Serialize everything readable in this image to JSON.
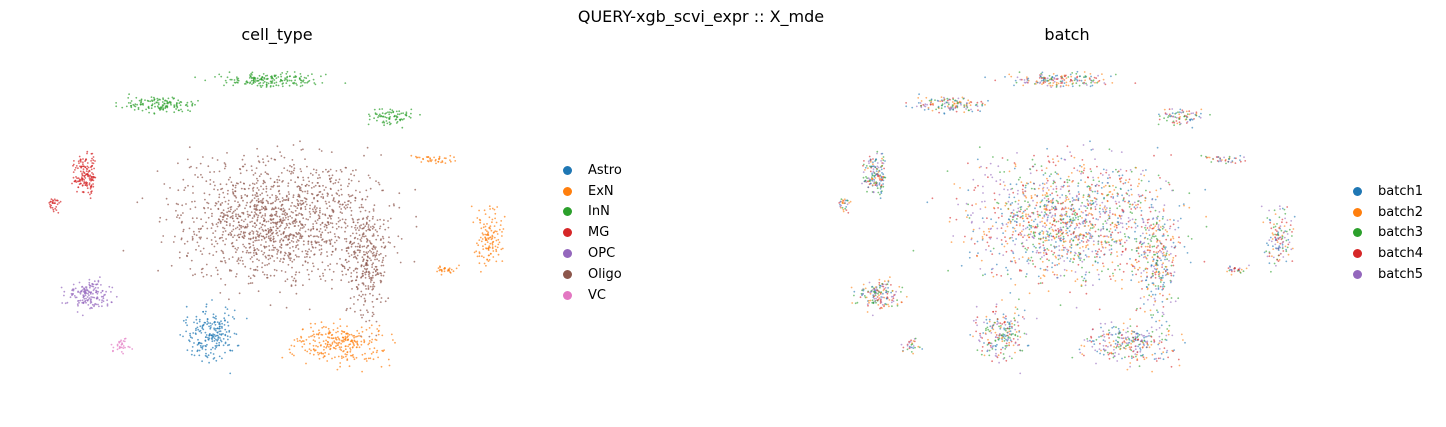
{
  "figure": {
    "suptitle": "QUERY-xgb_scvi_expr :: X_mde"
  },
  "chart_data": [
    {
      "type": "scatter",
      "title": "cell_type",
      "xlabel": "",
      "ylabel": "",
      "grid": false,
      "axes_visible": false,
      "legend_placement": "right",
      "series": [
        {
          "name": "Astro",
          "color": "#1f77b4"
        },
        {
          "name": "ExN",
          "color": "#ff7f0e"
        },
        {
          "name": "InN",
          "color": "#2ca02c"
        },
        {
          "name": "MG",
          "color": "#d62728"
        },
        {
          "name": "OPC",
          "color": "#9467bd"
        },
        {
          "name": "Oligo",
          "color": "#8c564b"
        },
        {
          "name": "VC",
          "color": "#e377c2"
        }
      ]
    },
    {
      "type": "scatter",
      "title": "batch",
      "xlabel": "",
      "ylabel": "",
      "grid": false,
      "axes_visible": false,
      "legend_placement": "right",
      "series": [
        {
          "name": "batch1",
          "color": "#1f77b4"
        },
        {
          "name": "batch2",
          "color": "#ff7f0e"
        },
        {
          "name": "batch3",
          "color": "#2ca02c"
        },
        {
          "name": "batch4",
          "color": "#d62728"
        },
        {
          "name": "batch5",
          "color": "#9467bd"
        }
      ]
    }
  ]
}
